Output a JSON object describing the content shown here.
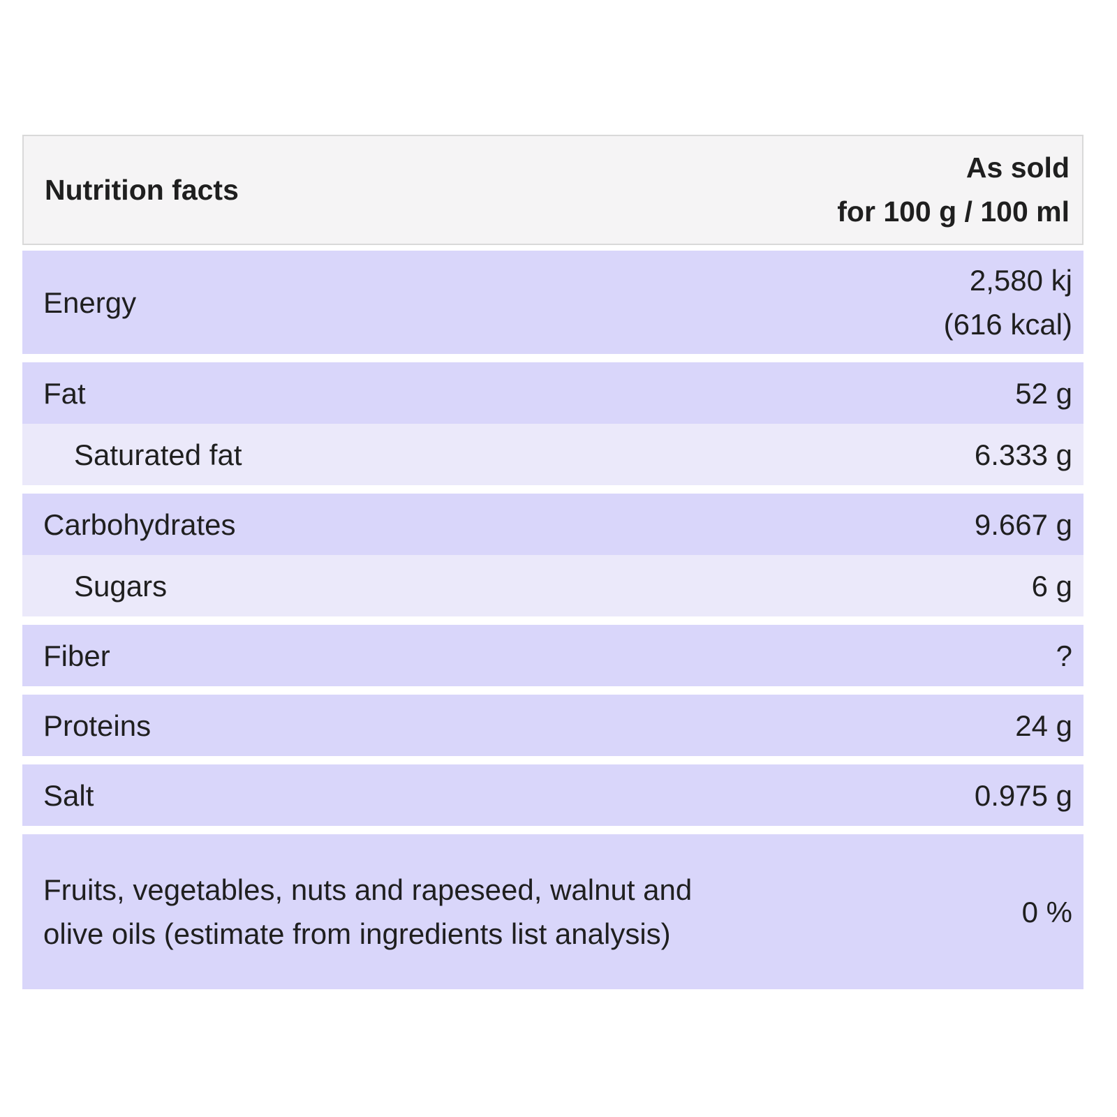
{
  "chart_data": {
    "type": "table",
    "title": "Nutrition facts",
    "columns": [
      "Nutrition facts",
      "As sold for 100 g / 100 ml"
    ],
    "rows": [
      [
        "Energy",
        "2,580 kj (616 kcal)"
      ],
      [
        "Fat",
        "52 g"
      ],
      [
        "Saturated fat",
        "6.333 g"
      ],
      [
        "Carbohydrates",
        "9.667 g"
      ],
      [
        "Sugars",
        "6 g"
      ],
      [
        "Fiber",
        "?"
      ],
      [
        "Proteins",
        "24 g"
      ],
      [
        "Salt",
        "0.975 g"
      ],
      [
        "Fruits, vegetables, nuts and rapeseed, walnut and olive oils (estimate from ingredients list analysis)",
        "0 %"
      ]
    ]
  },
  "table": {
    "header": {
      "title": "Nutrition facts",
      "column_line1": "As sold",
      "column_line2": "for 100 g / 100 ml"
    },
    "rows": [
      {
        "label": "Energy",
        "value_line1": "2,580 kj",
        "value_line2": "(616 kcal)"
      },
      {
        "label": "Fat",
        "value": "52 g"
      },
      {
        "label": "Saturated fat",
        "value": "6.333 g"
      },
      {
        "label": "Carbohydrates",
        "value": "9.667 g"
      },
      {
        "label": "Sugars",
        "value": "6 g"
      },
      {
        "label": "Fiber",
        "value": "?"
      },
      {
        "label": "Proteins",
        "value": "24 g"
      },
      {
        "label": "Salt",
        "value": "0.975 g"
      },
      {
        "label": "Fruits, vegetables, nuts and rapeseed, walnut and olive oils (estimate from ingredients list analysis)",
        "value": "0 %"
      }
    ],
    "colors": {
      "row_primary": "#d9d6fa",
      "row_secondary": "#ebe9fa",
      "header_background": "#f5f4f5",
      "header_border": "#d9d9d9",
      "text": "#1f1f1f"
    }
  }
}
